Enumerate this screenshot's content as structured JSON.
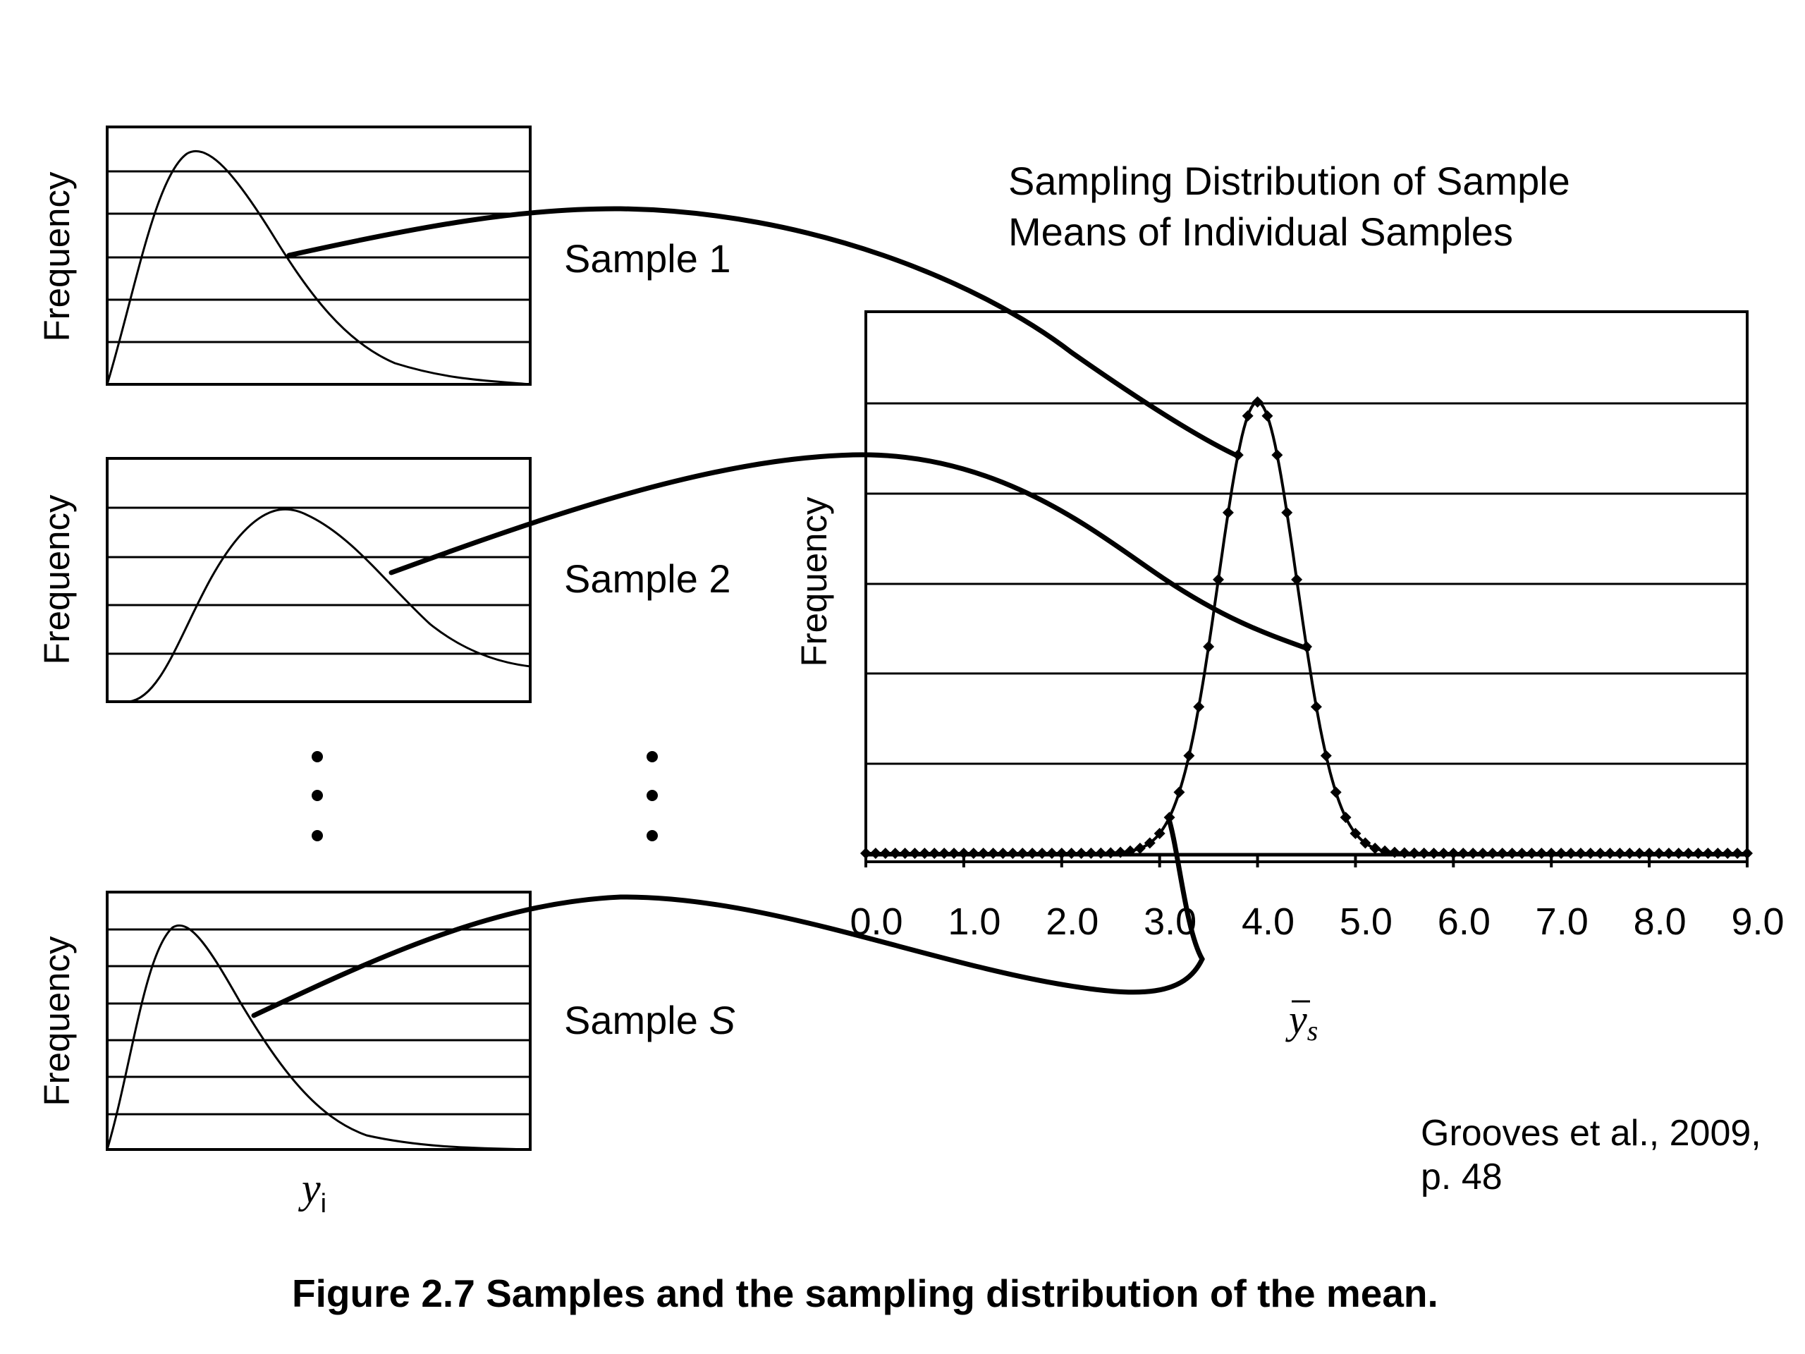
{
  "samples": [
    {
      "label": "Sample 1"
    },
    {
      "label": "Sample 2"
    },
    {
      "label_prefix": "Sample ",
      "label_var": "S"
    }
  ],
  "frequency_label": "Frequency",
  "x_var": {
    "base": "y",
    "sub": "i"
  },
  "sampling": {
    "title_line1": "Sampling Distribution of Sample",
    "title_line2": "Means of Individual Samples",
    "ylabel": "Frequency",
    "xlabel_base": "y",
    "xlabel_sub": "s",
    "ticks": [
      "0.0",
      "1.0",
      "2.0",
      "3.0",
      "4.0",
      "5.0",
      "6.0",
      "7.0",
      "8.0",
      "9.0"
    ]
  },
  "chart_data": {
    "type": "line",
    "xlim": [
      0,
      9
    ],
    "peak_mean": 4.0,
    "spread": 0.4,
    "grid": true
  },
  "citation": {
    "line1": "Grooves et al., 2009,",
    "line2": "p. 48"
  },
  "caption": "Figure 2.7  Samples and the sampling distribution of the mean."
}
